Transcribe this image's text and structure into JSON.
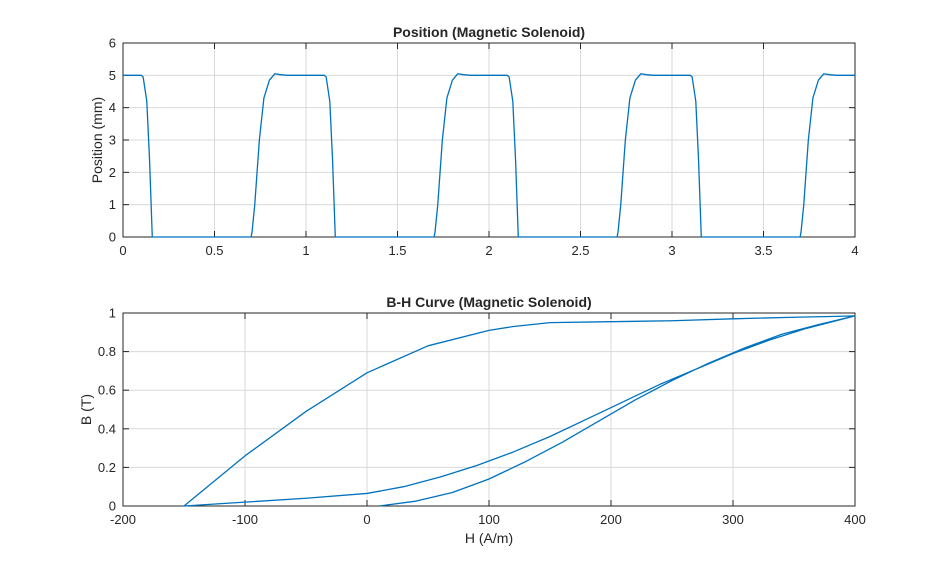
{
  "chart_data": [
    {
      "type": "line",
      "title": "Position (Magnetic Solenoid)",
      "xlabel": "",
      "ylabel": "Position (mm)",
      "xlim": [
        0,
        4
      ],
      "ylim": [
        0,
        6
      ],
      "xticks": [
        "0",
        "0.5",
        "1",
        "1.5",
        "2",
        "2.5",
        "3",
        "3.5",
        "4"
      ],
      "yticks": [
        "0",
        "1",
        "2",
        "3",
        "4",
        "5",
        "6"
      ],
      "grid": true,
      "color": "#0072bd",
      "series": [
        {
          "x": [
            0,
            0.1,
            0.11,
            0.13,
            0.145,
            0.155,
            0.16,
            0.7,
            0.705,
            0.72,
            0.745,
            0.77,
            0.8,
            0.83,
            0.86,
            0.9,
            1.0,
            1.1,
            1.11,
            1.13,
            1.145,
            1.155,
            1.16,
            1.7,
            1.705,
            1.72,
            1.745,
            1.77,
            1.8,
            1.83,
            1.86,
            1.9,
            2.0,
            2.1,
            2.11,
            2.13,
            2.145,
            2.155,
            2.16,
            2.7,
            2.705,
            2.72,
            2.745,
            2.77,
            2.8,
            2.83,
            2.86,
            2.9,
            3.0,
            3.1,
            3.11,
            3.13,
            3.145,
            3.155,
            3.16,
            3.7,
            3.705,
            3.72,
            3.745,
            3.77,
            3.8,
            3.83,
            3.86,
            3.9,
            4.0
          ],
          "y": [
            5,
            5,
            4.95,
            4.2,
            2.4,
            0.8,
            0,
            0,
            0.15,
            1.0,
            3.0,
            4.3,
            4.85,
            5.05,
            5.02,
            5.0,
            5.0,
            5.0,
            4.95,
            4.2,
            2.4,
            0.8,
            0,
            0,
            0.15,
            1.0,
            3.0,
            4.3,
            4.85,
            5.05,
            5.02,
            5.0,
            5.0,
            5.0,
            4.95,
            4.2,
            2.4,
            0.8,
            0,
            0,
            0.15,
            1.0,
            3.0,
            4.3,
            4.85,
            5.05,
            5.02,
            5.0,
            5.0,
            5.0,
            4.95,
            4.2,
            2.4,
            0.8,
            0,
            0,
            0.15,
            1.0,
            3.0,
            4.3,
            4.85,
            5.05,
            5.02,
            5.0,
            5.0
          ]
        }
      ]
    },
    {
      "type": "line",
      "title": "B-H Curve (Magnetic Solenoid)",
      "xlabel": "H (A/m)",
      "ylabel": "B (T)",
      "xlim": [
        -200,
        400
      ],
      "ylim": [
        0,
        1
      ],
      "xticks": [
        "-200",
        "-100",
        "0",
        "100",
        "200",
        "300",
        "400"
      ],
      "yticks": [
        "0",
        "0.2",
        "0.4",
        "0.6",
        "0.8",
        "1"
      ],
      "grid": true,
      "color": "#0072bd",
      "series": [
        {
          "x": [
            10,
            40,
            70,
            100,
            130,
            160,
            190,
            220,
            250,
            280,
            310,
            340,
            370,
            400,
            380,
            350,
            300,
            250,
            200,
            150,
            120,
            100,
            50,
            0,
            -50,
            -100,
            -150,
            -100,
            -50,
            0,
            30,
            60,
            90,
            120,
            150,
            180,
            210,
            240,
            270,
            300,
            330,
            360,
            400
          ],
          "y": [
            0,
            0.025,
            0.07,
            0.14,
            0.23,
            0.33,
            0.44,
            0.55,
            0.65,
            0.74,
            0.82,
            0.89,
            0.94,
            0.985,
            0.982,
            0.978,
            0.97,
            0.96,
            0.955,
            0.95,
            0.93,
            0.91,
            0.83,
            0.69,
            0.49,
            0.26,
            0,
            0.02,
            0.04,
            0.065,
            0.1,
            0.15,
            0.21,
            0.28,
            0.36,
            0.45,
            0.54,
            0.63,
            0.71,
            0.79,
            0.86,
            0.92,
            0.985
          ]
        }
      ]
    }
  ]
}
